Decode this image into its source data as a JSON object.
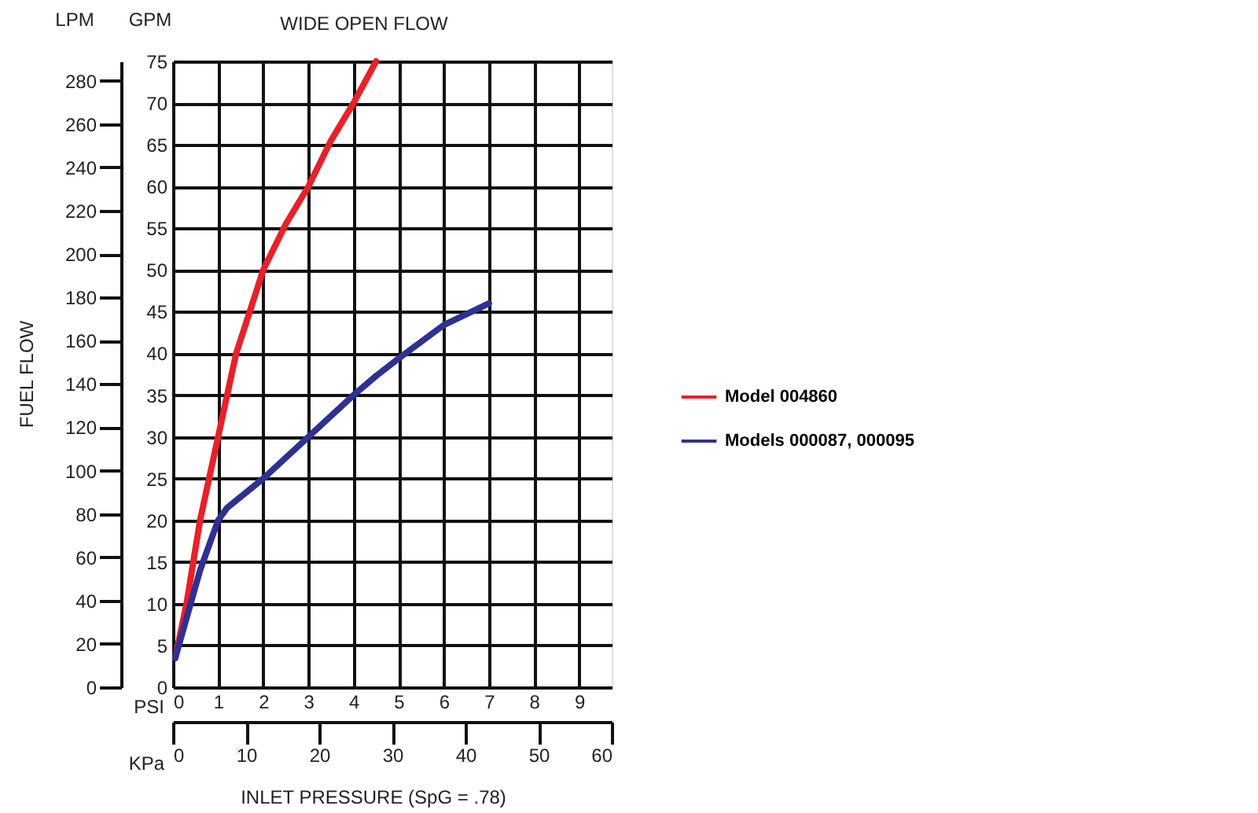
{
  "chart_data": {
    "type": "line",
    "title": "WIDE OPEN FLOW",
    "xlabel": "PSI",
    "x2label": "KPa",
    "ylabel": "GPM",
    "y2label": "LPM",
    "annotations": [
      "FUEL FLOW",
      "INLET PRESSURE (SpG = .78)"
    ],
    "xlim": [
      0,
      9.72
    ],
    "xticks": [
      0,
      1,
      2,
      3,
      4,
      5,
      6,
      7,
      8,
      9
    ],
    "x2lim": [
      0,
      60
    ],
    "x2ticks": [
      0,
      10,
      20,
      30,
      40,
      50,
      60
    ],
    "ylim": [
      0,
      75
    ],
    "yticks": [
      0,
      5,
      10,
      15,
      20,
      25,
      30,
      35,
      40,
      45,
      50,
      55,
      60,
      65,
      70,
      75
    ],
    "y2lim": [
      0,
      289
    ],
    "y2ticks": [
      0,
      20,
      40,
      60,
      80,
      100,
      120,
      140,
      160,
      180,
      200,
      220,
      240,
      260,
      280
    ],
    "grid": true,
    "legend": "right",
    "series": [
      {
        "name": "Model 004860",
        "color": "#e8202a",
        "x": [
          0.05,
          0.3,
          0.6,
          1,
          1.4,
          1.7,
          2,
          2.5,
          3,
          3.5,
          4,
          4.5
        ],
        "values": [
          3.5,
          10,
          20,
          30,
          40,
          45,
          50,
          55.5,
          60,
          65.5,
          70,
          75
        ]
      },
      {
        "name": "Models 000087, 000095",
        "color": "#2e3192",
        "x": [
          0.05,
          0.6,
          1,
          1.2,
          2,
          3,
          4,
          4.5,
          5,
          6,
          7
        ],
        "values": [
          3.5,
          14,
          20,
          21.5,
          25,
          30,
          35,
          37.3,
          39.4,
          43.4,
          46
        ]
      }
    ]
  }
}
